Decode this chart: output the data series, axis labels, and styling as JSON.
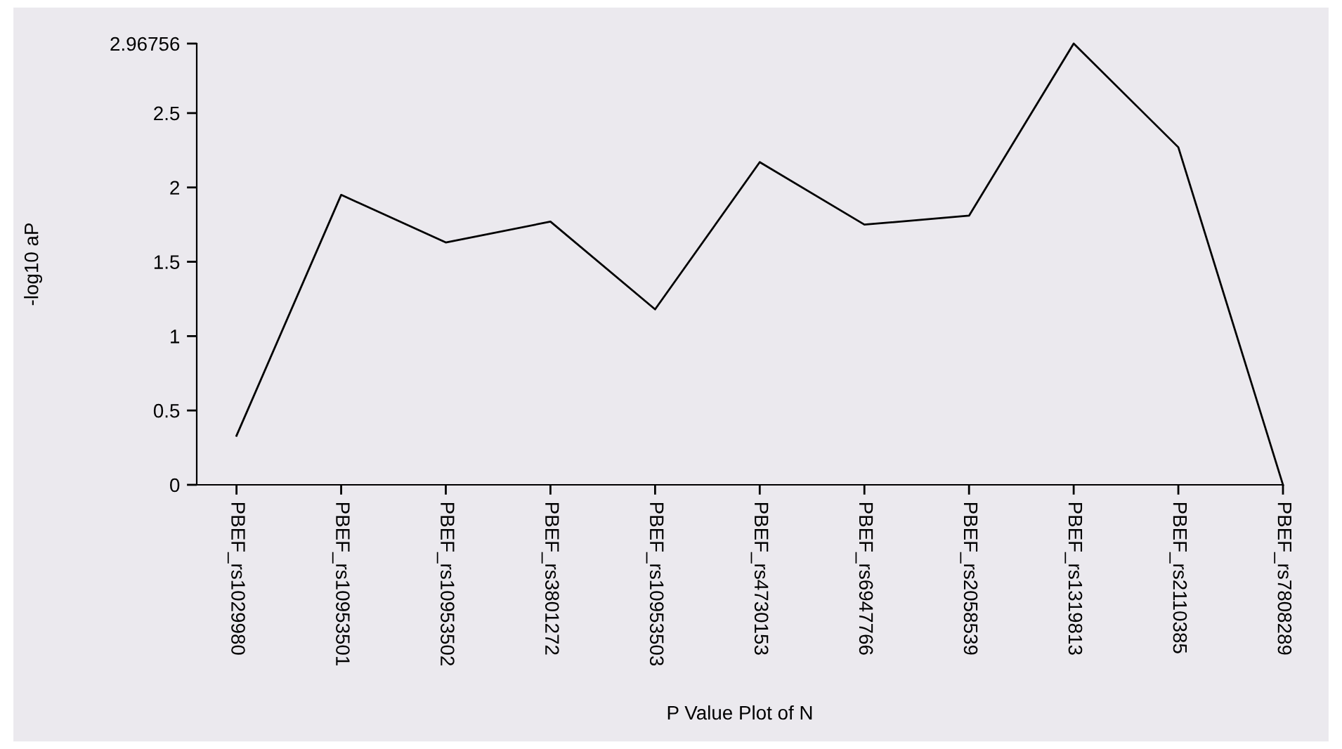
{
  "chart_data": {
    "type": "line",
    "xlabel": "P Value Plot of N",
    "ylabel": "-log10 aP",
    "categories": [
      "PBEF_rs1029980",
      "PBEF_rs10953501",
      "PBEF_rs10953502",
      "PBEF_rs3801272",
      "PBEF_rs10953503",
      "PBEF_rs4730153",
      "PBEF_rs6947766",
      "PBEF_rs2058539",
      "PBEF_rs1319813",
      "PBEF_rs2110385",
      "PBEF_rs7808289"
    ],
    "series": [
      {
        "color": "#000000",
        "values": [
          0.33,
          1.95,
          1.63,
          1.77,
          1.18,
          2.17,
          1.75,
          1.81,
          2.96756,
          2.27,
          0
        ]
      }
    ],
    "ylim": [
      0,
      2.96756
    ],
    "yticks": [
      0,
      0.5,
      1,
      1.5,
      2,
      2.5,
      2.96756
    ],
    "grid": false,
    "legend": false,
    "marker": "none",
    "line_style": "solid"
  }
}
